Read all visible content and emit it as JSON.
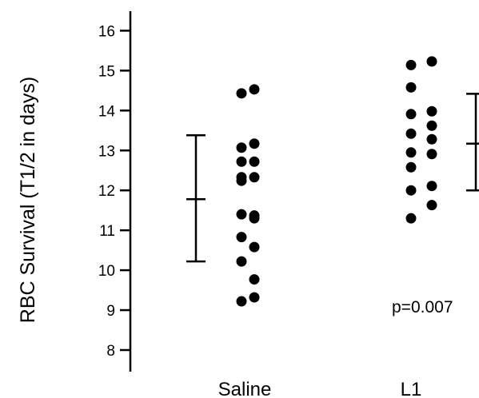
{
  "chart_data": {
    "type": "scatter",
    "title": "",
    "xlabel": "",
    "ylabel": "RBC Survival (T1/2 in days)",
    "categories": [
      "Saline",
      "L1"
    ],
    "ylim": [
      7.5,
      16.6
    ],
    "yticks": [
      8,
      9,
      10,
      11,
      12,
      13,
      14,
      15,
      16
    ],
    "grid": false,
    "series": [
      {
        "category": "Saline",
        "values": [
          14.43,
          14.53,
          13.07,
          13.17,
          12.72,
          12.72,
          12.33,
          12.33,
          12.24,
          11.37,
          11.4,
          11.3,
          10.83,
          10.58,
          10.22,
          9.77,
          9.22,
          9.32
        ],
        "errorbar": {
          "mean": 11.78,
          "low": 10.22,
          "high": 13.38
        }
      },
      {
        "category": "L1",
        "values": [
          15.14,
          15.23,
          14.58,
          13.98,
          13.91,
          13.62,
          13.42,
          13.28,
          12.95,
          12.91,
          12.58,
          12.11,
          12.0,
          11.63,
          11.3
        ],
        "errorbar": {
          "mean": 13.17,
          "low": 12.0,
          "high": 14.42
        }
      }
    ],
    "annotations": [
      "p=0.007"
    ]
  }
}
